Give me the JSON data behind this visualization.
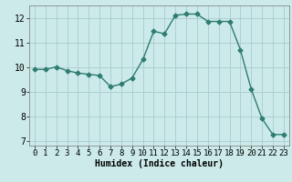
{
  "x": [
    0,
    1,
    2,
    3,
    4,
    5,
    6,
    7,
    8,
    9,
    10,
    11,
    12,
    13,
    14,
    15,
    16,
    17,
    18,
    19,
    20,
    21,
    22,
    23
  ],
  "y": [
    9.9,
    9.9,
    10.0,
    9.85,
    9.75,
    9.7,
    9.65,
    9.2,
    9.3,
    9.55,
    10.3,
    11.45,
    11.35,
    12.1,
    12.15,
    12.15,
    11.85,
    11.85,
    11.85,
    10.7,
    9.1,
    7.9,
    7.25,
    7.25
  ],
  "line_color": "#2e7d6e",
  "marker": "D",
  "marker_size": 2.5,
  "line_width": 1.0,
  "background_color": "#cceaea",
  "grid_color": "#aacccc",
  "xlabel": "Humidex (Indice chaleur)",
  "xlabel_fontsize": 7,
  "tick_fontsize": 6.5,
  "xlim": [
    -0.5,
    23.5
  ],
  "ylim": [
    6.8,
    12.5
  ],
  "yticks": [
    7,
    8,
    9,
    10,
    11,
    12
  ],
  "xticks": [
    0,
    1,
    2,
    3,
    4,
    5,
    6,
    7,
    8,
    9,
    10,
    11,
    12,
    13,
    14,
    15,
    16,
    17,
    18,
    19,
    20,
    21,
    22,
    23
  ]
}
